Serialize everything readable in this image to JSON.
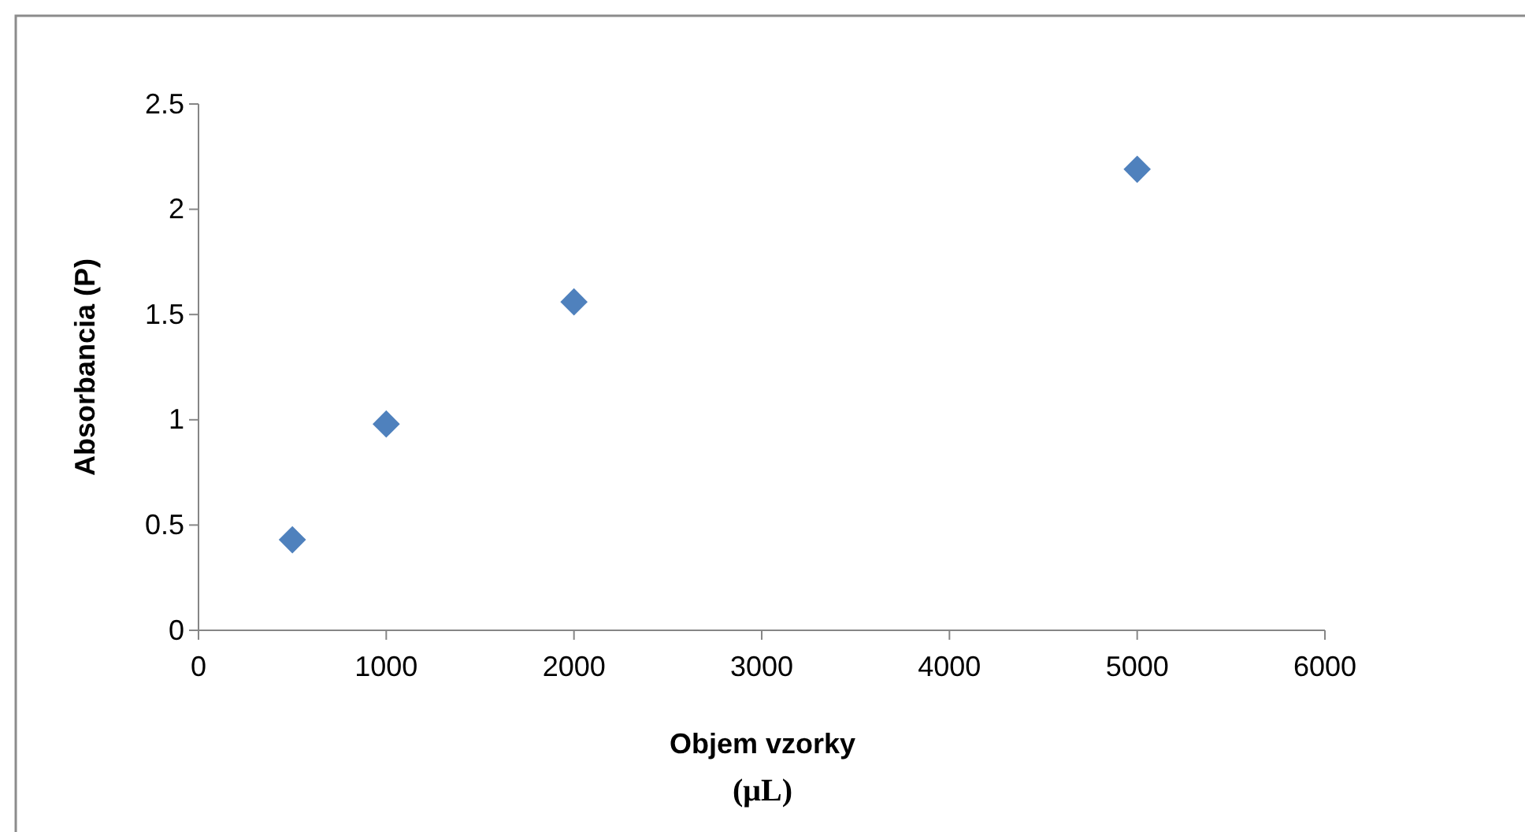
{
  "chart_data": {
    "type": "scatter",
    "xlabel": "Objem vzorky (μL)",
    "ylabel": "Absorbancia (P)",
    "x": [
      500,
      1000,
      2000,
      5000
    ],
    "series": [
      {
        "color": "#4f81bd",
        "values": [
          0.43,
          0.98,
          1.56,
          2.19
        ]
      }
    ],
    "xlim": [
      0,
      6000
    ],
    "xticks": [
      0,
      1000,
      2000,
      3000,
      4000,
      5000,
      6000
    ],
    "ylim": [
      0,
      2.5
    ],
    "yticks": [
      0,
      0.5,
      1,
      1.5,
      2,
      2.5
    ],
    "marker": "diamond"
  }
}
